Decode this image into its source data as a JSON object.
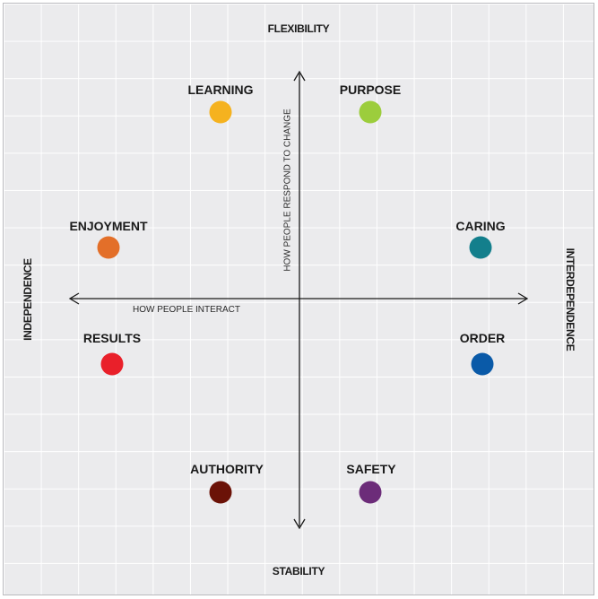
{
  "poles": {
    "top": "FLEXIBILITY",
    "bottom": "STABILITY",
    "left": "INDEPENDENCE",
    "right": "INTERDEPENDENCE"
  },
  "axes": {
    "vertical_caption": "HOW PEOPLE RESPOND TO CHANGE",
    "horizontal_caption": "HOW PEOPLE INTERACT"
  },
  "styles": [
    {
      "label": "LEARNING",
      "color": "#f5b21f"
    },
    {
      "label": "PURPOSE",
      "color": "#9ccd3c"
    },
    {
      "label": "ENJOYMENT",
      "color": "#e36f29"
    },
    {
      "label": "CARING",
      "color": "#137f8c"
    },
    {
      "label": "RESULTS",
      "color": "#e9202a"
    },
    {
      "label": "ORDER",
      "color": "#0a5aa8"
    },
    {
      "label": "AUTHORITY",
      "color": "#6b1207"
    },
    {
      "label": "SAFETY",
      "color": "#6c2c79"
    }
  ]
}
